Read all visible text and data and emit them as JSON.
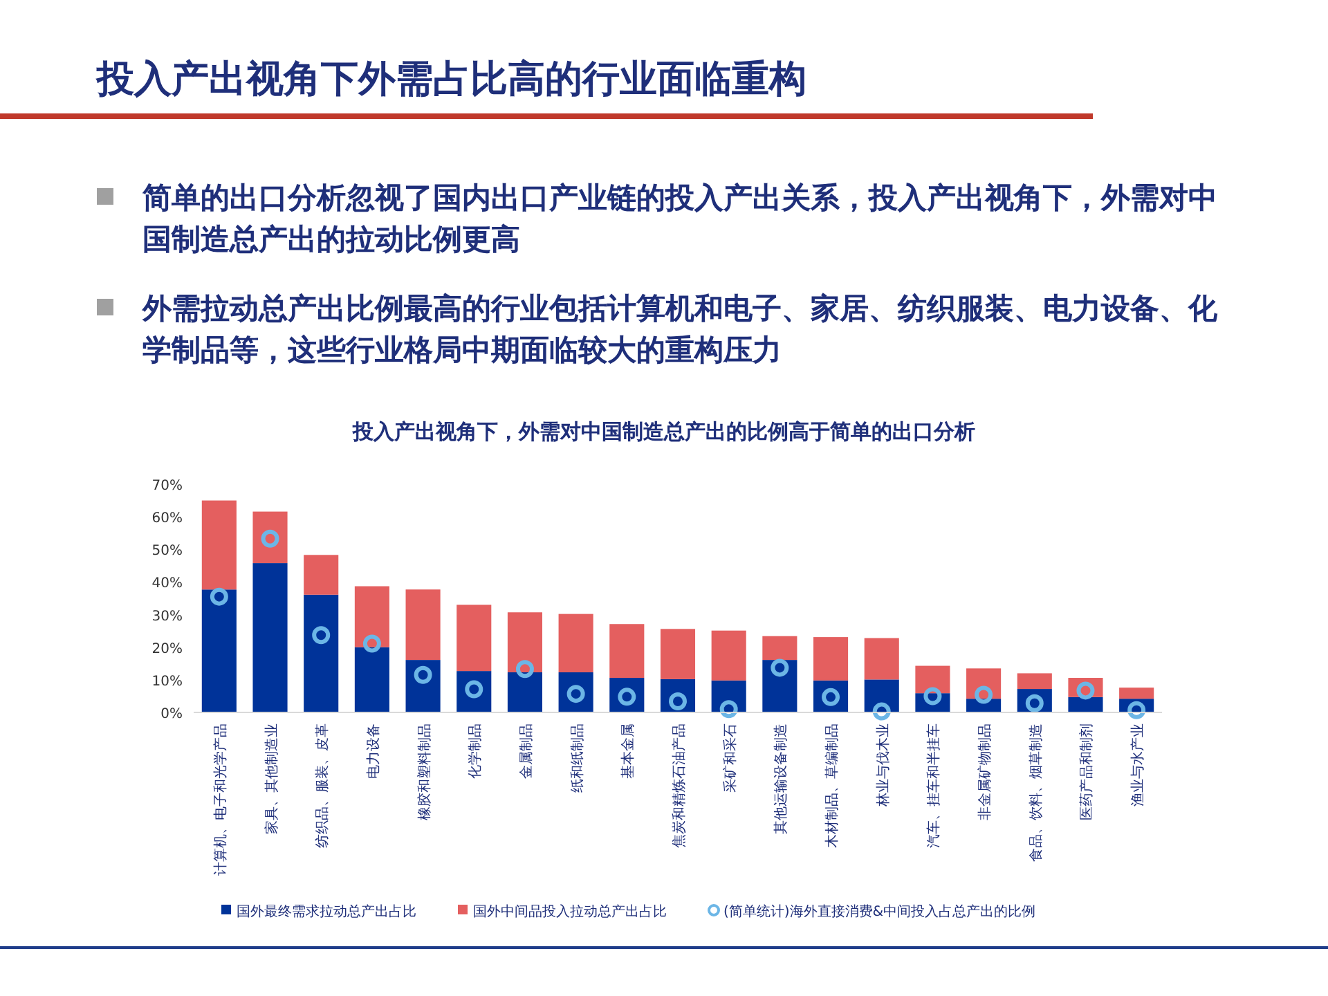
{
  "chart_data": {
    "type": "bar",
    "title": "投入产出视角下外需占比高的行业面临重构",
    "subtitle": "投入产出视角下，外需对中国制造总产出的比例高于简单的出口分析",
    "annotations": [
      "简单的出口分析忽视了国内出口产业链的投入产出关系，投入产出视角下，外需对中国制造总产出的拉动比例更高",
      "外需拉动总产出比例最高的行业包括计算机和电子、家居、纺织服装、电力设备、化学制品等，这些行业格局中期面临较大的重构压力"
    ],
    "categories": [
      "计算机、电子和光学产品",
      "家具、其他制造业",
      "纺织品、服装、皮革",
      "电力设备",
      "橡胶和塑料制品",
      "化学制品",
      "金属制品",
      "纸和纸制品",
      "基本金属",
      "焦炭和精炼石油产品",
      "采矿和采石",
      "其他运输设备制造",
      "木材制品、草编制品",
      "林业与伐木业",
      "汽车、挂车和半挂车",
      "非金属矿物制品",
      "食品、饮料、烟草制造",
      "医药产品和制剂",
      "渔业与水产业"
    ],
    "stacked": true,
    "ylim": [
      0,
      70
    ],
    "yticks": [
      {
        "value": 0,
        "label": "0%"
      },
      {
        "value": 10,
        "label": "10%"
      },
      {
        "value": 20,
        "label": "20%"
      },
      {
        "value": 30,
        "label": "30%"
      },
      {
        "value": 40,
        "label": "40%"
      },
      {
        "value": 50,
        "label": "50%"
      },
      {
        "value": 60,
        "label": "60%"
      },
      {
        "value": 70,
        "label": "70%"
      }
    ],
    "legend": "bottom",
    "series": [
      {
        "name": "国外最终需求拉动总产出占比",
        "color": "#003399",
        "values": [
          37.7,
          45.8,
          36.1,
          20.0,
          16.1,
          12.7,
          12.3,
          12.3,
          10.6,
          10.2,
          9.8,
          16.1,
          9.8,
          10.1,
          5.9,
          4.2,
          7.2,
          4.7,
          4.2
        ]
      },
      {
        "name": "国外中间品投入拉动总产出占比",
        "color": "#e45f5f",
        "values": [
          27.3,
          15.8,
          12.2,
          18.7,
          21.6,
          20.3,
          18.4,
          17.9,
          16.5,
          15.4,
          15.3,
          7.3,
          13.3,
          12.7,
          8.4,
          9.3,
          4.8,
          5.9,
          3.4
        ]
      },
      {
        "name": "(简单统计)海外直接消费&中间投入占总产出的比例",
        "type": "scatter",
        "marker": "circle",
        "color": "#6cb6e6",
        "values": [
          35.5,
          53.3,
          23.7,
          21.1,
          11.5,
          7.1,
          13.3,
          5.7,
          4.8,
          3.4,
          1.0,
          13.7,
          4.7,
          0.3,
          5.0,
          5.4,
          2.8,
          6.7,
          0.7
        ]
      }
    ]
  }
}
